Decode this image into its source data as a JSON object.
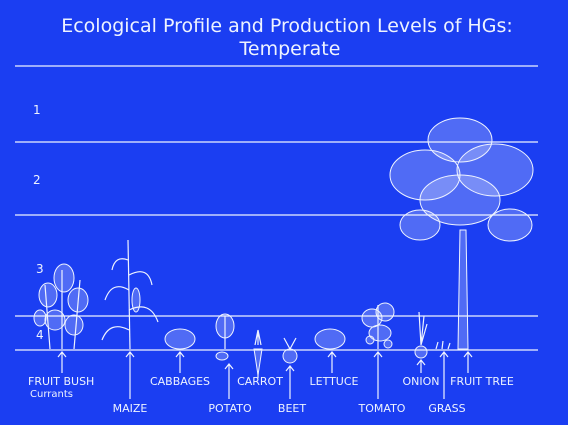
{
  "header": {
    "title": [
      "Ecological Profile and Production Levels of HGs:",
      "Temperate"
    ]
  },
  "levels": [
    "1",
    "2",
    "3",
    "4"
  ],
  "plants": [
    {
      "label": "FRUIT BUSH",
      "sublabel": "Currants"
    },
    {
      "label": "MAIZE"
    },
    {
      "label": "CABBAGES"
    },
    {
      "label": "POTATO"
    },
    {
      "label": "CARROT"
    },
    {
      "label": "BEET"
    },
    {
      "label": "LETTUCE"
    },
    {
      "label": "TOMATO"
    },
    {
      "label": "ONION"
    },
    {
      "label": "GRASS"
    },
    {
      "label": "FRUIT TREE"
    }
  ]
}
